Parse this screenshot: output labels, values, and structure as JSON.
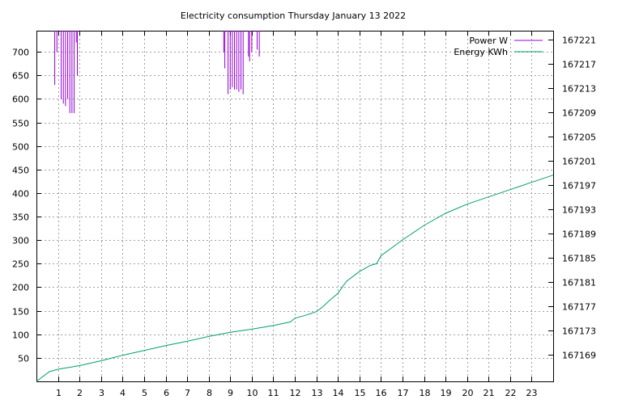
{
  "chart_data": {
    "type": "line",
    "title": "Electricity consumption Thursday January 13 2022",
    "x_ticks": [
      "1",
      "2",
      "3",
      "4",
      "5",
      "6",
      "7",
      "8",
      "9",
      "10",
      "11",
      "12",
      "13",
      "14",
      "15",
      "16",
      "17",
      "18",
      "19",
      "20",
      "21",
      "22",
      "23"
    ],
    "xlim": [
      0,
      24
    ],
    "y_left_ticks": [
      "50",
      "100",
      "150",
      "200",
      "250",
      "300",
      "350",
      "400",
      "450",
      "500",
      "550",
      "600",
      "650",
      "700"
    ],
    "ylim_left": [
      0,
      745
    ],
    "y_right_ticks": [
      "167169",
      "167173",
      "167177",
      "167181",
      "167185",
      "167189",
      "167193",
      "167197",
      "167201",
      "167205",
      "167209",
      "167213",
      "167217",
      "167221"
    ],
    "ylim_right": [
      167164.6,
      167222.4
    ],
    "grid": true,
    "legend_position": "top-right",
    "series": [
      {
        "name": "Power W",
        "color": "#9400d3",
        "axis": "left",
        "style": "impulses",
        "x": [
          0.85,
          0.9,
          0.95,
          1.0,
          1.05,
          1.1,
          1.15,
          1.2,
          1.25,
          1.3,
          1.35,
          1.4,
          1.45,
          1.5,
          1.55,
          1.6,
          1.65,
          1.7,
          1.75,
          1.8,
          1.85,
          1.9,
          1.95,
          2.0,
          8.7,
          8.75,
          8.8,
          8.85,
          8.9,
          8.95,
          9.0,
          9.05,
          9.1,
          9.15,
          9.2,
          9.25,
          9.3,
          9.35,
          9.4,
          9.45,
          9.5,
          9.55,
          9.6,
          9.65,
          9.7,
          9.75,
          9.8,
          9.85,
          9.9,
          9.95,
          10.0,
          10.05,
          10.1,
          10.15,
          10.2,
          10.25,
          10.3,
          10.35,
          10.4,
          10.45
        ],
        "y": [
          630,
          745,
          700,
          745,
          745,
          745,
          600,
          745,
          590,
          745,
          585,
          745,
          600,
          745,
          570,
          745,
          570,
          745,
          570,
          745,
          720,
          650,
          745,
          745,
          700,
          665,
          745,
          745,
          610,
          745,
          620,
          745,
          625,
          745,
          620,
          745,
          620,
          745,
          615,
          745,
          620,
          745,
          610,
          745,
          745,
          745,
          745,
          690,
          680,
          745,
          700,
          745,
          745,
          745,
          745,
          705,
          745,
          690,
          745,
          745
        ]
      },
      {
        "name": "Energy KWh",
        "color": "#009e73",
        "axis": "right",
        "style": "line",
        "x": [
          0,
          0.6,
          1,
          2,
          3,
          4,
          5,
          6,
          7,
          8,
          9,
          10,
          11,
          11.8,
          12,
          12.5,
          13,
          13.3,
          13.6,
          14,
          14.2,
          14.4,
          15,
          15.5,
          15.8,
          16,
          17,
          18,
          19,
          20,
          21,
          22,
          23,
          24
        ],
        "y": [
          167164.6,
          167166.2,
          167166.6,
          167167.2,
          167168.0,
          167168.9,
          167169.7,
          167170.5,
          167171.2,
          167172.0,
          167172.7,
          167173.2,
          167173.8,
          167174.4,
          167175.0,
          167175.5,
          167176.1,
          167176.9,
          167177.9,
          167179.1,
          167180.1,
          167181.1,
          167182.7,
          167183.7,
          167184.0,
          167185.3,
          167187.9,
          167190.3,
          167192.3,
          167193.8,
          167195.0,
          167196.2,
          167197.4,
          167198.6
        ]
      }
    ]
  }
}
